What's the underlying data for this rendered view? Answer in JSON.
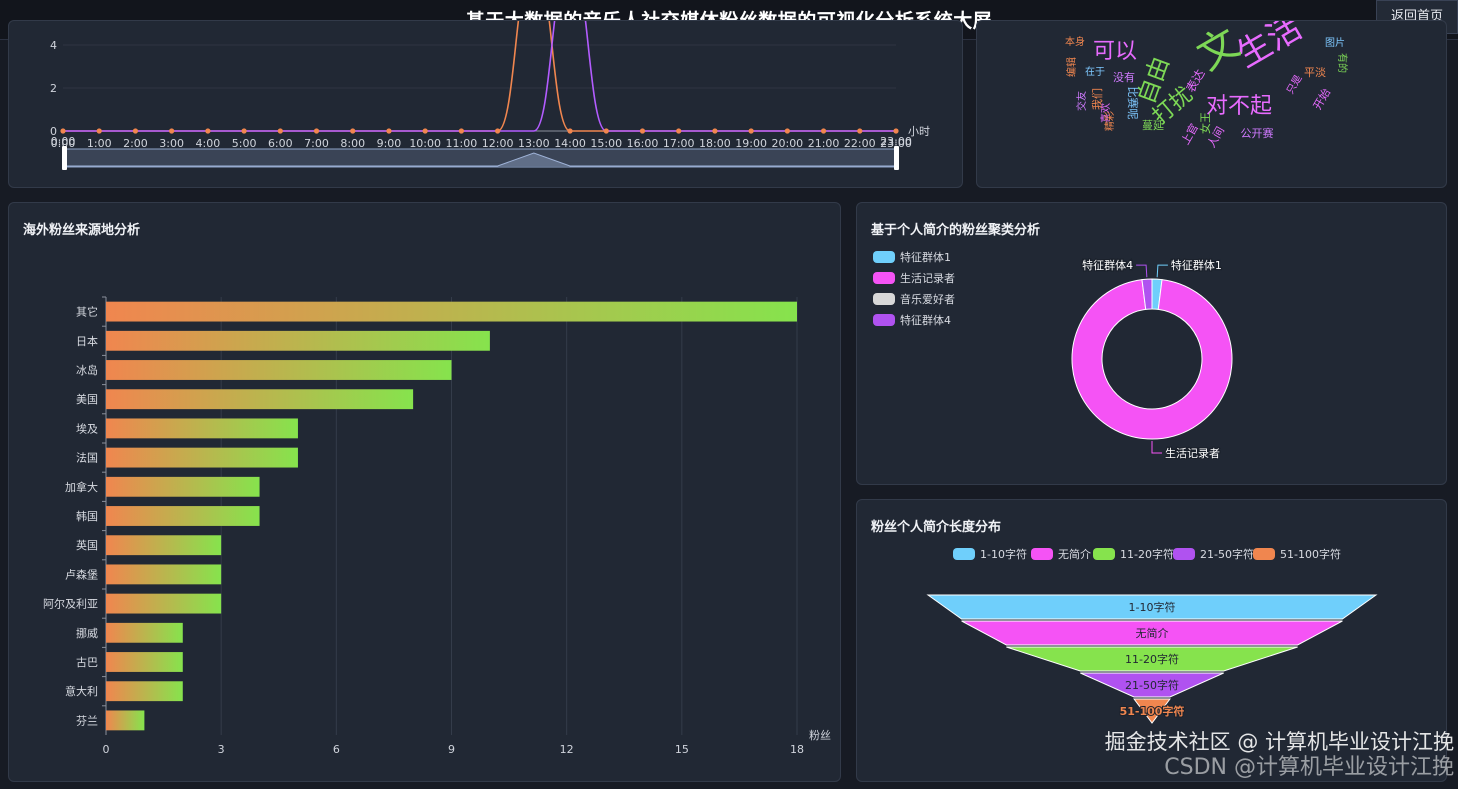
{
  "header": {
    "title": "基于大数据的音乐人社交媒体粉丝数据的可视化分析系统大屏",
    "back_label": "返回首页"
  },
  "hourly_panel": {
    "chart_data": {
      "type": "line",
      "x": [
        "0:00",
        "1:00",
        "2:00",
        "3:00",
        "4:00",
        "5:00",
        "6:00",
        "7:00",
        "8:00",
        "9:00",
        "10:00",
        "11:00",
        "12:00",
        "13:00",
        "14:00",
        "15:00",
        "16:00",
        "17:00",
        "18:00",
        "19:00",
        "20:00",
        "21:00",
        "22:00",
        "23:00"
      ],
      "xlabel": "小时",
      "yticks": [
        0,
        2,
        4
      ],
      "ylim": [
        0,
        4.6
      ],
      "series": [
        {
          "color": "#f0864f",
          "values": [
            0,
            0,
            0,
            0,
            0,
            0,
            0,
            0,
            0,
            0,
            0,
            0,
            0,
            8,
            0,
            0,
            0,
            0,
            0,
            0,
            0,
            0,
            0,
            0
          ]
        },
        {
          "color": "#b35cff",
          "values": [
            0,
            0,
            0,
            0,
            0,
            0,
            0,
            0,
            0,
            0,
            0,
            0,
            0,
            0,
            8,
            0,
            0,
            0,
            0,
            0,
            0,
            0,
            0,
            0
          ]
        }
      ],
      "zoom": {
        "start_label": "0:00",
        "end_label": "23:00"
      }
    }
  },
  "wordcloud_panel": {
    "words": [
      {
        "text": "可以",
        "color": "#e86bff"
      },
      {
        "text": "自由",
        "color": "#7dd856"
      },
      {
        "text": "打扰",
        "color": "#7dd856"
      },
      {
        "text": "对不起",
        "color": "#e86bff"
      },
      {
        "text": "生活",
        "color": "#e86bff"
      },
      {
        "text": "没有",
        "color": "#d07aff"
      },
      {
        "text": "在于",
        "color": "#7ec8ff"
      },
      {
        "text": "平淡",
        "color": "#f0864f"
      },
      {
        "text": "开始",
        "color": "#e86bff"
      },
      {
        "text": "公开赛",
        "color": "#d07aff"
      },
      {
        "text": "蔓延",
        "color": "#7dd856"
      },
      {
        "text": "女王",
        "color": "#7dd856"
      },
      {
        "text": "人间",
        "color": "#e86bff"
      },
      {
        "text": "比赛呢",
        "color": "#7ec8ff"
      },
      {
        "text": "我们",
        "color": "#f0864f"
      },
      {
        "text": "交友",
        "color": "#d07aff"
      },
      {
        "text": "上官",
        "color": "#e86bff"
      },
      {
        "text": "只是",
        "color": "#e86bff"
      },
      {
        "text": "有的",
        "color": "#7dd856"
      },
      {
        "text": "喜欢",
        "color": "#e86bff"
      },
      {
        "text": "精彩",
        "color": "#f0864f"
      },
      {
        "text": "图片",
        "color": "#7ec8ff"
      },
      {
        "text": "本身",
        "color": "#f0864f"
      },
      {
        "text": "编辑",
        "color": "#f0864f"
      },
      {
        "text": "表达",
        "color": "#e86bff"
      },
      {
        "text": "文",
        "color": "#7dd856"
      }
    ]
  },
  "overseas_panel": {
    "title": "海外粉丝来源地分析",
    "chart_data": {
      "type": "bar",
      "orientation": "horizontal",
      "categories": [
        "其它",
        "日本",
        "冰岛",
        "美国",
        "埃及",
        "法国",
        "加拿大",
        "韩国",
        "英国",
        "卢森堡",
        "阿尔及利亚",
        "挪威",
        "古巴",
        "意大利",
        "芬兰"
      ],
      "values": [
        18,
        10,
        9,
        8,
        5,
        5,
        4,
        4,
        3,
        3,
        3,
        2,
        2,
        2,
        1
      ],
      "xlabel": "粉丝",
      "xlim": [
        0,
        18
      ],
      "xticks": [
        0,
        3,
        6,
        9,
        12,
        15,
        18
      ],
      "gradient": [
        "#f0864f",
        "#86e34d"
      ]
    }
  },
  "cluster_panel": {
    "title": "基于个人简介的粉丝聚类分析",
    "chart_data": {
      "type": "pie",
      "donut": true,
      "legend_position": "top-left",
      "slices": [
        {
          "name": "特征群体1",
          "value": 2,
          "color": "#6fcffb"
        },
        {
          "name": "生活记录者",
          "value": 96,
          "color": "#f553f5"
        },
        {
          "name": "音乐爱好者",
          "value": 0,
          "color": "#d8d8d8"
        },
        {
          "name": "特征群体4",
          "value": 2,
          "color": "#b052f0"
        }
      ]
    }
  },
  "funnel_panel": {
    "title": "粉丝个人简介长度分布",
    "chart_data": {
      "type": "funnel",
      "legend_position": "top",
      "stages": [
        {
          "name": "1-10字符",
          "value": 100,
          "color": "#6fcffb"
        },
        {
          "name": "无简介",
          "value": 85,
          "color": "#f553f5"
        },
        {
          "name": "11-20字符",
          "value": 65,
          "color": "#86e34d"
        },
        {
          "name": "21-50字符",
          "value": 32,
          "color": "#b052f0"
        },
        {
          "name": "51-100字符",
          "value": 8,
          "color": "#f0864f"
        }
      ]
    }
  },
  "watermark": {
    "line1": "掘金技术社区 @ 计算机毕业设计江挽",
    "line2": "CSDN @计算机毕业设计江挽"
  }
}
